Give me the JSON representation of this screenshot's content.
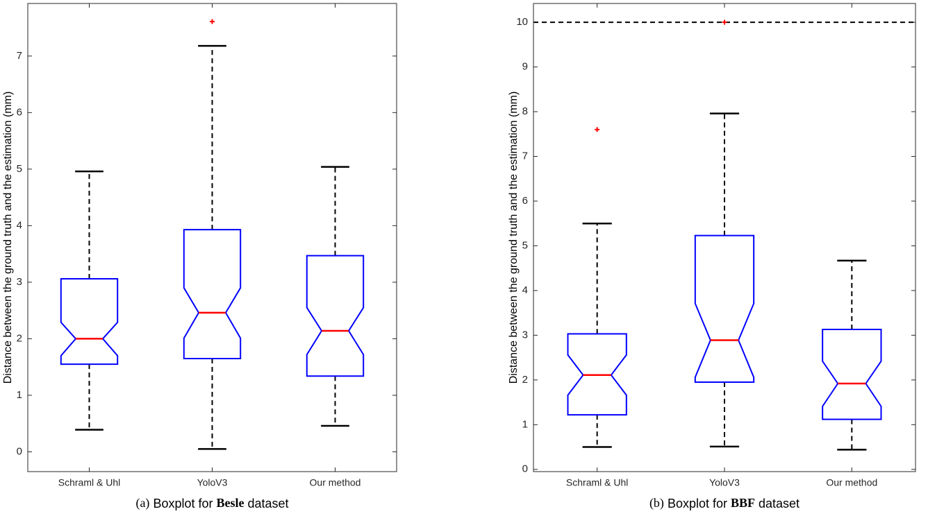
{
  "chart_data": [
    {
      "type": "box",
      "ylabel": "Distance between the ground truth and the estimation (mm)",
      "caption": [
        "(a)",
        "Boxplot for",
        "Besle",
        "dataset"
      ],
      "categories": [
        "Schraml & Uhl",
        "YoloV3",
        "Our method"
      ],
      "box_color": "#0000ff",
      "median_color": "#ff0000",
      "whisker_color": "#000000",
      "outlier_color": "#ff0000",
      "ylim": [
        -0.35,
        7.93
      ],
      "yticks": [
        0,
        1,
        2,
        3,
        4,
        5,
        6,
        7
      ],
      "boxes": [
        {
          "whisker_low": 0.39,
          "q1": 1.55,
          "notch_low": 1.7,
          "median": 2.0,
          "notch_high": 2.29,
          "q3": 3.06,
          "whisker_high": 4.96,
          "outliers": []
        },
        {
          "whisker_low": 0.05,
          "q1": 1.65,
          "notch_low": 2.01,
          "median": 2.46,
          "notch_high": 2.9,
          "q3": 3.93,
          "whisker_high": 7.18,
          "outliers": [
            7.61
          ]
        },
        {
          "whisker_low": 0.46,
          "q1": 1.34,
          "notch_low": 1.72,
          "median": 2.14,
          "notch_high": 2.55,
          "q3": 3.47,
          "whisker_high": 5.04,
          "outliers": []
        }
      ]
    },
    {
      "type": "box",
      "ylabel": "Distance between the ground truth and the estimation (mm)",
      "caption": [
        "(b)",
        "Boxplot for",
        "BBF",
        "dataset"
      ],
      "categories": [
        "Schraml & Uhl",
        "YoloV3",
        "Our method"
      ],
      "box_color": "#0000ff",
      "median_color": "#ff0000",
      "whisker_color": "#000000",
      "outlier_color": "#ff0000",
      "ylim": [
        -0.05,
        10.42
      ],
      "yticks": [
        0,
        1,
        2,
        3,
        4,
        5,
        6,
        7,
        8,
        9,
        10
      ],
      "hline": 10,
      "boxes": [
        {
          "whisker_low": 0.5,
          "q1": 1.22,
          "notch_low": 1.66,
          "median": 2.11,
          "notch_high": 2.56,
          "q3": 3.03,
          "whisker_high": 5.5,
          "outliers": [
            7.6
          ]
        },
        {
          "whisker_low": 0.51,
          "q1": 1.95,
          "notch_low": 2.06,
          "median": 2.89,
          "notch_high": 3.71,
          "q3": 5.23,
          "whisker_high": 7.96,
          "outliers": [
            10.0
          ]
        },
        {
          "whisker_low": 0.44,
          "q1": 1.12,
          "notch_low": 1.41,
          "median": 1.92,
          "notch_high": 2.42,
          "q3": 3.13,
          "whisker_high": 4.67,
          "outliers": []
        }
      ]
    }
  ]
}
